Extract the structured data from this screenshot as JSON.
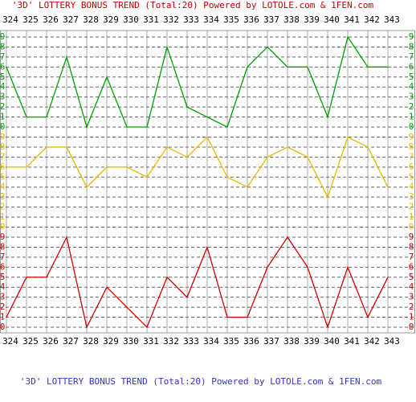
{
  "chart_data": {
    "type": "line",
    "title": "'3D' LOTTERY BONUS TREND (Total:20)  Powered by LOTOLE.com & 1FEN.com",
    "categories": [
      "324",
      "325",
      "326",
      "327",
      "328",
      "329",
      "330",
      "331",
      "332",
      "333",
      "334",
      "335",
      "336",
      "337",
      "338",
      "339",
      "340",
      "341",
      "342",
      "343"
    ],
    "ylim": [
      0,
      9
    ],
    "yticks": [
      0,
      1,
      2,
      3,
      4,
      5,
      6,
      7,
      8,
      9
    ],
    "grid": true,
    "series": [
      {
        "color": "#00a000",
        "values": [
          6,
          1,
          1,
          7,
          0,
          5,
          0,
          0,
          8,
          2,
          1,
          0,
          6,
          8,
          6,
          6,
          1,
          9,
          6,
          6
        ]
      },
      {
        "color": "#e8b800",
        "values": [
          6,
          6,
          8,
          8,
          4,
          6,
          6,
          5,
          8,
          7,
          9,
          5,
          4,
          7,
          8,
          7,
          3,
          9,
          8,
          4
        ]
      },
      {
        "color": "#d00000",
        "values": [
          1,
          5,
          5,
          9,
          0,
          4,
          2,
          0,
          5,
          3,
          8,
          1,
          1,
          6,
          9,
          6,
          0,
          6,
          1,
          5
        ]
      }
    ]
  }
}
